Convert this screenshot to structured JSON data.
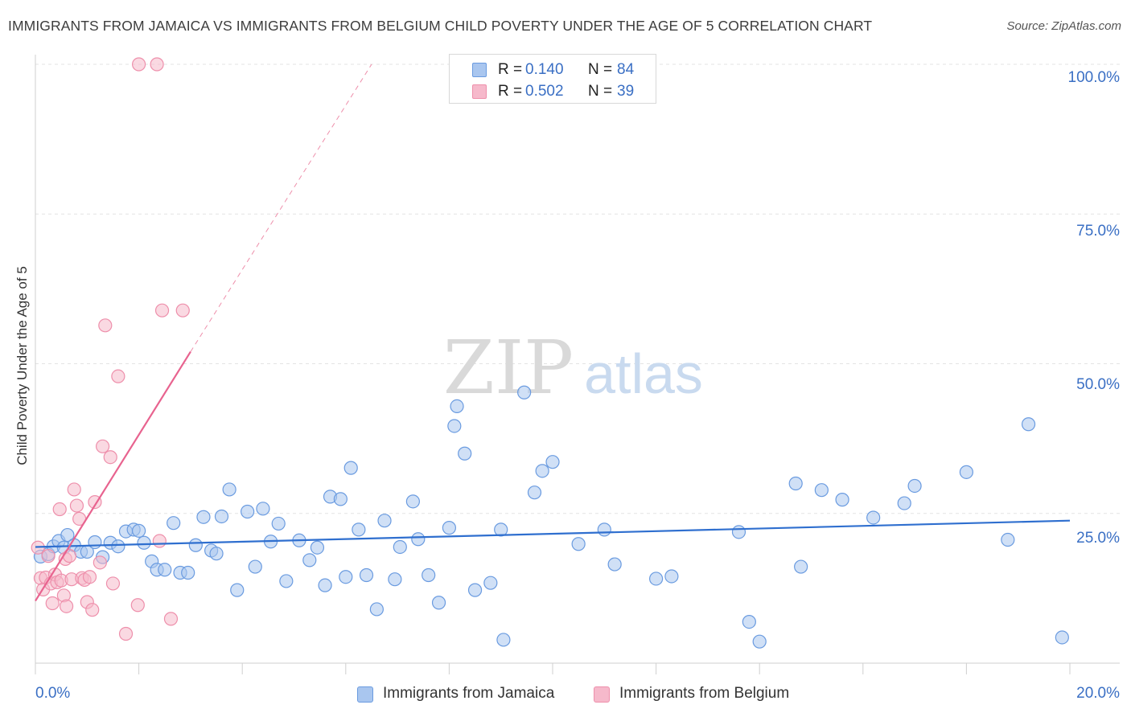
{
  "header": {
    "title": "IMMIGRANTS FROM JAMAICA VS IMMIGRANTS FROM BELGIUM CHILD POVERTY UNDER THE AGE OF 5 CORRELATION CHART",
    "source": "Source: ZipAtlas.com"
  },
  "watermark": {
    "zip": "ZIP",
    "atlas": "atlas"
  },
  "legend": {
    "jamaica": {
      "r_label": "R =",
      "r_value": "0.140",
      "n_label": "N =",
      "n_value": "84"
    },
    "belgium": {
      "r_label": "R =",
      "r_value": "0.502",
      "n_label": "N =",
      "n_value": "39"
    }
  },
  "bottom_legend": {
    "jamaica_label": "Immigrants from Jamaica",
    "belgium_label": "Immigrants from Belgium"
  },
  "colors": {
    "jamaica_fill": "#a9c6ef",
    "jamaica_stroke": "#6a9be0",
    "jamaica_line": "#2f6fcf",
    "belgium_fill": "#f6b9cb",
    "belgium_stroke": "#ee8fab",
    "belgium_line": "#e8638f",
    "accent_text": "#3a6fc4",
    "grid": "#e3e3e3"
  },
  "chart_data": {
    "type": "scatter",
    "title": "IMMIGRANTS FROM JAMAICA VS IMMIGRANTS FROM BELGIUM CHILD POVERTY UNDER THE AGE OF 5 CORRELATION CHART",
    "xlabel": "",
    "ylabel": "Child Poverty Under the Age of 5",
    "xlim": [
      0,
      20
    ],
    "ylim": [
      0,
      100
    ],
    "x_tick_labels": [
      "0.0%",
      "20.0%"
    ],
    "y_tick_labels": [
      "25.0%",
      "50.0%",
      "75.0%",
      "100.0%"
    ],
    "y_ticks": [
      25,
      50,
      75,
      100
    ],
    "grid": true,
    "series": [
      {
        "name": "Immigrants from Jamaica",
        "r": 0.14,
        "n": 84,
        "trend": {
          "x": [
            0,
            20
          ],
          "y": [
            19.4,
            23.8
          ],
          "style": "solid"
        },
        "points": [
          [
            0.1,
            17.8
          ],
          [
            0.25,
            18.2
          ],
          [
            0.35,
            19.5
          ],
          [
            0.45,
            20.4
          ],
          [
            0.55,
            19.3
          ],
          [
            0.62,
            21.4
          ],
          [
            0.75,
            19.7
          ],
          [
            0.88,
            18.6
          ],
          [
            1.0,
            18.6
          ],
          [
            1.15,
            20.2
          ],
          [
            1.3,
            17.7
          ],
          [
            1.45,
            20.1
          ],
          [
            1.6,
            19.5
          ],
          [
            1.75,
            22.0
          ],
          [
            1.9,
            22.3
          ],
          [
            2.0,
            22.1
          ],
          [
            2.1,
            20.1
          ],
          [
            2.25,
            17.0
          ],
          [
            2.35,
            15.6
          ],
          [
            2.5,
            15.6
          ],
          [
            2.67,
            23.4
          ],
          [
            2.8,
            15.1
          ],
          [
            2.95,
            15.1
          ],
          [
            3.1,
            19.7
          ],
          [
            3.25,
            24.4
          ],
          [
            3.4,
            18.8
          ],
          [
            3.5,
            18.3
          ],
          [
            3.6,
            24.5
          ],
          [
            3.75,
            29.0
          ],
          [
            3.9,
            12.2
          ],
          [
            4.1,
            25.3
          ],
          [
            4.25,
            16.1
          ],
          [
            4.4,
            25.8
          ],
          [
            4.55,
            20.3
          ],
          [
            4.7,
            23.3
          ],
          [
            4.85,
            13.7
          ],
          [
            5.1,
            20.5
          ],
          [
            5.3,
            17.2
          ],
          [
            5.45,
            19.3
          ],
          [
            5.6,
            13.0
          ],
          [
            5.7,
            27.8
          ],
          [
            5.9,
            27.4
          ],
          [
            6.0,
            14.4
          ],
          [
            6.1,
            32.6
          ],
          [
            6.25,
            22.3
          ],
          [
            6.4,
            14.7
          ],
          [
            6.6,
            9.0
          ],
          [
            6.75,
            23.8
          ],
          [
            6.95,
            14.0
          ],
          [
            7.05,
            19.4
          ],
          [
            7.3,
            27.0
          ],
          [
            7.4,
            20.7
          ],
          [
            7.6,
            14.7
          ],
          [
            7.8,
            10.1
          ],
          [
            8.0,
            22.6
          ],
          [
            8.1,
            39.6
          ],
          [
            8.15,
            42.9
          ],
          [
            8.3,
            35.0
          ],
          [
            8.5,
            12.2
          ],
          [
            8.8,
            13.4
          ],
          [
            9.0,
            22.3
          ],
          [
            9.05,
            3.9
          ],
          [
            9.45,
            45.2
          ],
          [
            9.65,
            28.5
          ],
          [
            9.8,
            32.1
          ],
          [
            10.0,
            33.6
          ],
          [
            10.5,
            19.9
          ],
          [
            11.0,
            22.3
          ],
          [
            11.2,
            16.5
          ],
          [
            12.0,
            14.1
          ],
          [
            12.3,
            14.5
          ],
          [
            13.6,
            21.9
          ],
          [
            13.8,
            6.9
          ],
          [
            14.0,
            3.6
          ],
          [
            14.7,
            30.0
          ],
          [
            14.8,
            16.1
          ],
          [
            15.2,
            28.9
          ],
          [
            15.6,
            27.3
          ],
          [
            16.2,
            24.3
          ],
          [
            16.8,
            26.7
          ],
          [
            17.0,
            29.6
          ],
          [
            18.0,
            31.9
          ],
          [
            18.8,
            20.6
          ],
          [
            19.2,
            39.9
          ],
          [
            19.85,
            4.3
          ]
        ]
      },
      {
        "name": "Immigrants from Belgium",
        "r": 0.502,
        "n": 39,
        "trend": {
          "x": [
            0,
            3.0
          ],
          "y": [
            10.4,
            52.0
          ],
          "style": "solid",
          "extension": {
            "x": [
              3.0,
              6.5
            ],
            "y": [
              52.0,
              100.0
            ],
            "style": "dashed"
          }
        },
        "points": [
          [
            0.05,
            19.3
          ],
          [
            0.1,
            14.2
          ],
          [
            0.15,
            12.3
          ],
          [
            0.2,
            14.3
          ],
          [
            0.25,
            17.9
          ],
          [
            0.3,
            13.3
          ],
          [
            0.33,
            10.0
          ],
          [
            0.38,
            14.8
          ],
          [
            0.42,
            13.5
          ],
          [
            0.47,
            25.7
          ],
          [
            0.5,
            13.8
          ],
          [
            0.55,
            11.3
          ],
          [
            0.58,
            17.4
          ],
          [
            0.6,
            9.5
          ],
          [
            0.66,
            17.9
          ],
          [
            0.7,
            14.0
          ],
          [
            0.75,
            29.0
          ],
          [
            0.8,
            26.3
          ],
          [
            0.85,
            24.1
          ],
          [
            0.9,
            14.2
          ],
          [
            0.95,
            13.9
          ],
          [
            1.0,
            10.2
          ],
          [
            1.05,
            14.4
          ],
          [
            1.1,
            8.9
          ],
          [
            1.15,
            26.9
          ],
          [
            1.25,
            16.8
          ],
          [
            1.3,
            36.2
          ],
          [
            1.45,
            34.4
          ],
          [
            1.5,
            13.3
          ],
          [
            1.35,
            56.4
          ],
          [
            1.6,
            47.9
          ],
          [
            1.75,
            4.9
          ],
          [
            1.98,
            9.7
          ],
          [
            2.0,
            100.0
          ],
          [
            2.35,
            100.0
          ],
          [
            2.4,
            20.4
          ],
          [
            2.45,
            58.9
          ],
          [
            2.62,
            7.4
          ],
          [
            2.85,
            58.9
          ]
        ]
      }
    ]
  }
}
